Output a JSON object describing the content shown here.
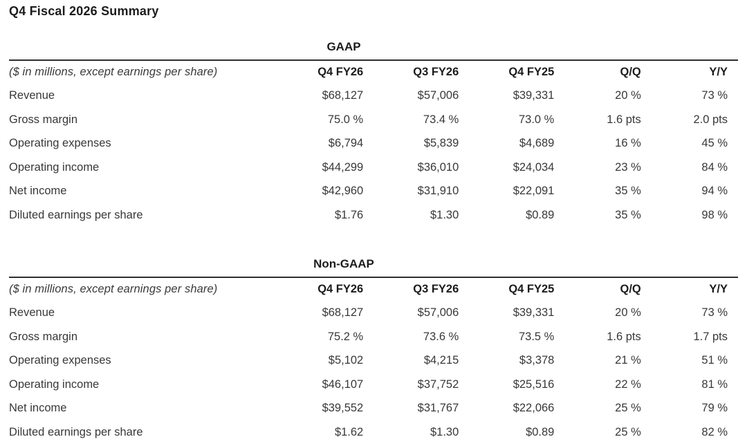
{
  "page": {
    "title": "Q4 Fiscal 2026 Summary"
  },
  "tables": [
    {
      "title": "GAAP",
      "note": "($ in millions, except earnings per share)",
      "columns": [
        "Q4 FY26",
        "Q3 FY26",
        "Q4 FY25",
        "Q/Q",
        "Y/Y"
      ],
      "rows": [
        {
          "label": "Revenue",
          "values": [
            "$68,127",
            "$57,006",
            "$39,331",
            "20 %",
            "73 %"
          ]
        },
        {
          "label": "Gross margin",
          "values": [
            "75.0 %",
            "73.4 %",
            "73.0 %",
            "1.6 pts",
            "2.0 pts"
          ]
        },
        {
          "label": "Operating expenses",
          "values": [
            "$6,794",
            "$5,839",
            "$4,689",
            "16 %",
            "45 %"
          ]
        },
        {
          "label": "Operating income",
          "values": [
            "$44,299",
            "$36,010",
            "$24,034",
            "23 %",
            "84 %"
          ]
        },
        {
          "label": "Net income",
          "values": [
            "$42,960",
            "$31,910",
            "$22,091",
            "35 %",
            "94 %"
          ]
        },
        {
          "label": "Diluted earnings per share",
          "values": [
            "$1.76",
            "$1.30",
            "$0.89",
            "35 %",
            "98 %"
          ]
        }
      ]
    },
    {
      "title": "Non-GAAP",
      "note": "($ in millions, except earnings per share)",
      "columns": [
        "Q4 FY26",
        "Q3 FY26",
        "Q4 FY25",
        "Q/Q",
        "Y/Y"
      ],
      "rows": [
        {
          "label": "Revenue",
          "values": [
            "$68,127",
            "$57,006",
            "$39,331",
            "20 %",
            "73 %"
          ]
        },
        {
          "label": "Gross margin",
          "values": [
            "75.2 %",
            "73.6 %",
            "73.5 %",
            "1.6 pts",
            "1.7 pts"
          ]
        },
        {
          "label": "Operating expenses",
          "values": [
            "$5,102",
            "$4,215",
            "$3,378",
            "21 %",
            "51 %"
          ]
        },
        {
          "label": "Operating income",
          "values": [
            "$46,107",
            "$37,752",
            "$25,516",
            "22 %",
            "81 %"
          ]
        },
        {
          "label": "Net income",
          "values": [
            "$39,552",
            "$31,767",
            "$22,066",
            "25 %",
            "79 %"
          ]
        },
        {
          "label": "Diluted earnings per share",
          "values": [
            "$1.62",
            "$1.30",
            "$0.89",
            "25 %",
            "82 %"
          ]
        }
      ]
    }
  ],
  "colors": {
    "text": "#383838",
    "heading": "#1c1c1c",
    "rule": "#2e2e2e",
    "background": "#ffffff"
  }
}
